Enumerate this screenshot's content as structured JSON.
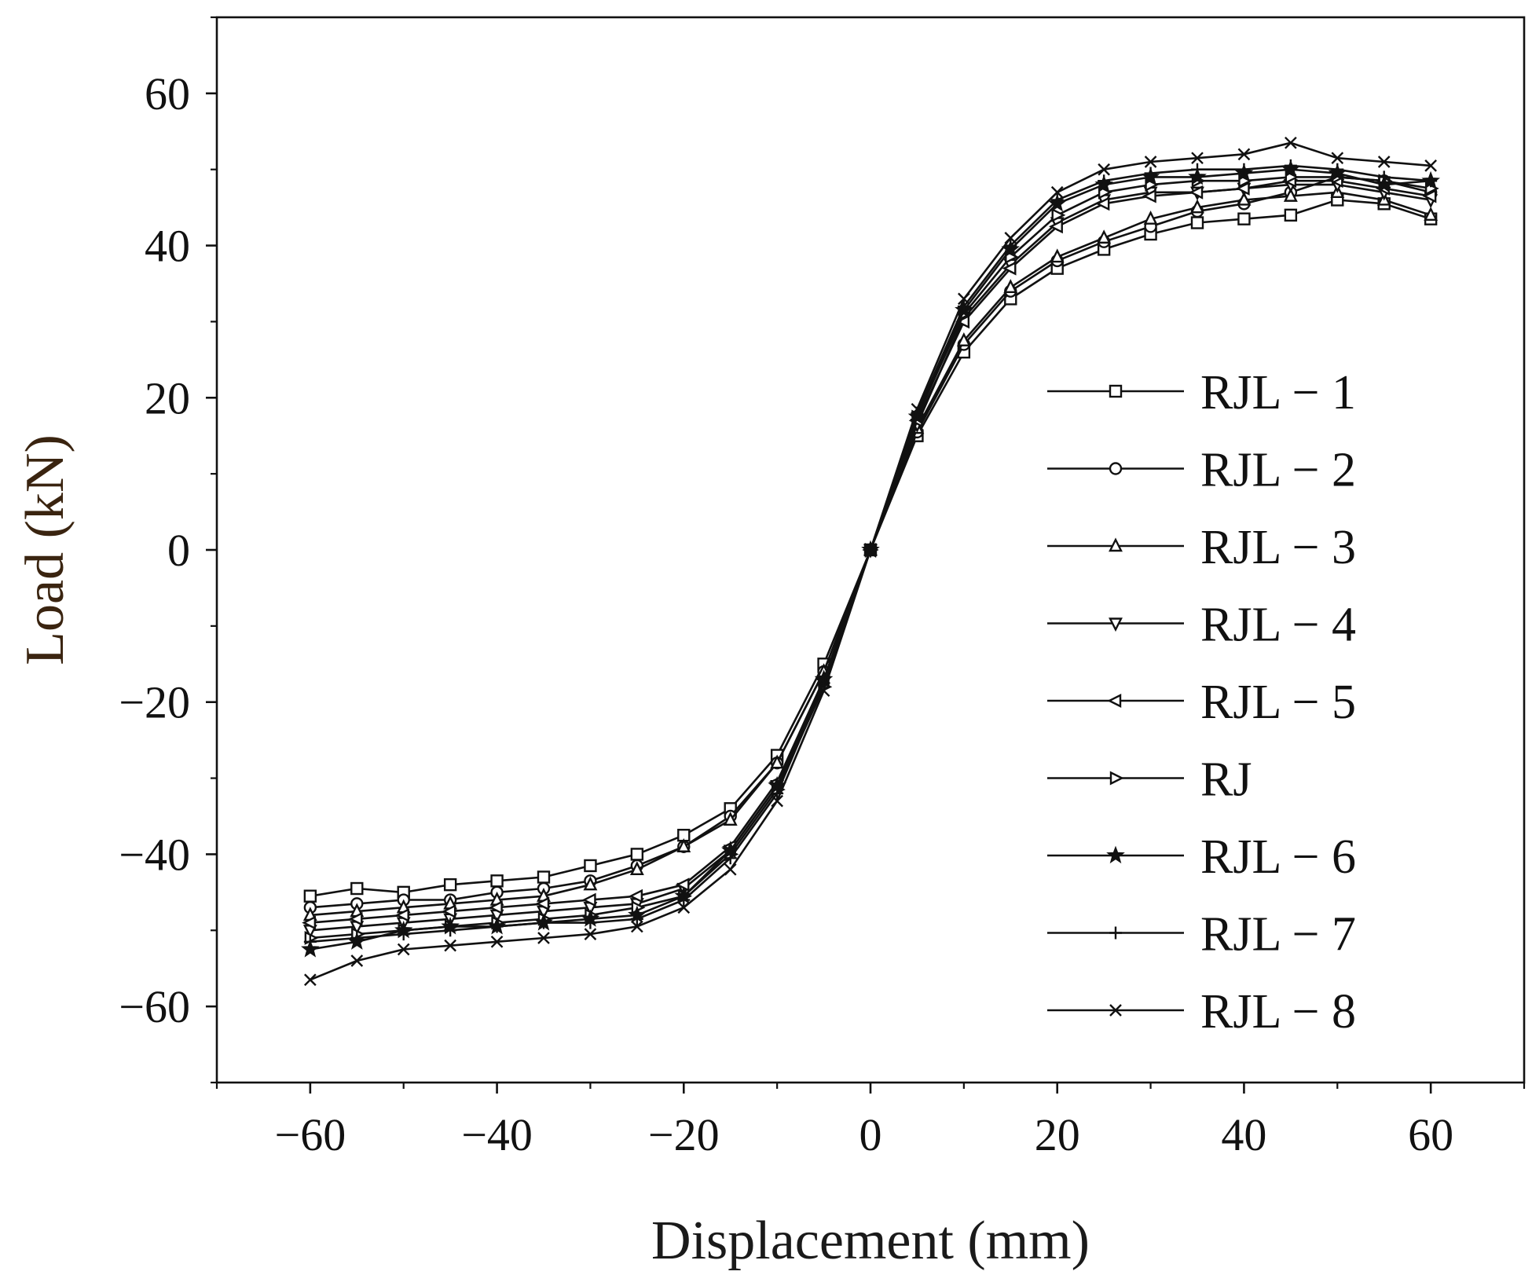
{
  "chart_data": {
    "type": "line",
    "title": "",
    "xlabel": "Displacement (mm)",
    "ylabel": "Load (kN)",
    "xlim": [
      -70,
      70
    ],
    "ylim": [
      -70,
      70
    ],
    "xticks": [
      -60,
      -40,
      -20,
      0,
      20,
      40,
      60
    ],
    "yticks": [
      -60,
      -40,
      -20,
      0,
      20,
      40,
      60
    ],
    "x_tick_labels": [
      "−60",
      "−40",
      "−20",
      "0",
      "20",
      "40",
      "60"
    ],
    "y_tick_labels": [
      "−60",
      "−40",
      "−20",
      "0",
      "20",
      "40",
      "60"
    ],
    "legend_position": "right",
    "x": [
      -60,
      -55,
      -50,
      -45,
      -40,
      -35,
      -30,
      -25,
      -20,
      -15,
      -10,
      -5,
      0,
      5,
      10,
      15,
      20,
      25,
      30,
      35,
      40,
      45,
      50,
      55,
      60
    ],
    "series": [
      {
        "name": "RJL − 1",
        "marker": "square",
        "values": [
          -45.5,
          -44.5,
          -45,
          -44,
          -43.5,
          -43,
          -41.5,
          -40,
          -37.5,
          -34,
          -27,
          -15,
          0,
          15,
          26,
          33,
          37,
          39.5,
          41.5,
          43,
          43.5,
          44,
          46,
          45.5,
          43.5
        ]
      },
      {
        "name": "RJL − 2",
        "marker": "circle",
        "values": [
          -47,
          -46.5,
          -46,
          -46,
          -45,
          -44.5,
          -43.5,
          -41.5,
          -39,
          -35,
          -28,
          -16,
          0,
          15.5,
          27,
          34,
          38,
          40.5,
          42.5,
          44.5,
          45.5,
          47,
          49,
          48.5,
          47
        ]
      },
      {
        "name": "RJL − 3",
        "marker": "triangle-up",
        "values": [
          -48,
          -47.5,
          -47,
          -46.5,
          -46,
          -45.5,
          -44,
          -42,
          -39,
          -35.5,
          -28,
          -16,
          0,
          16,
          27.5,
          34.5,
          38.5,
          41,
          43.5,
          45,
          46,
          46.5,
          47,
          46,
          44
        ]
      },
      {
        "name": "RJL − 4",
        "marker": "triangle-down",
        "values": [
          -50,
          -49.5,
          -49,
          -48.5,
          -48,
          -47.5,
          -47,
          -46.5,
          -44.5,
          -39.5,
          -31,
          -17.5,
          0,
          16.5,
          30.5,
          37.5,
          43,
          46,
          47,
          47,
          47.5,
          48,
          48,
          47,
          46
        ]
      },
      {
        "name": "RJL − 5",
        "marker": "triangle-left",
        "values": [
          -49,
          -48.5,
          -48,
          -47.5,
          -47,
          -46.5,
          -46,
          -45.5,
          -44,
          -39,
          -30.5,
          -17,
          0,
          17,
          30,
          37,
          42.5,
          45.5,
          46.5,
          47,
          47.5,
          48.5,
          48.5,
          47.5,
          46.5
        ]
      },
      {
        "name": "RJ",
        "marker": "triangle-right",
        "values": [
          -51,
          -50.5,
          -50,
          -49.5,
          -49,
          -48.5,
          -48,
          -47,
          -45.5,
          -40,
          -31.5,
          -18,
          0,
          17.5,
          31,
          38.5,
          44,
          47,
          48,
          48.5,
          48.5,
          49,
          49,
          48.5,
          47.5
        ]
      },
      {
        "name": "RJL − 6",
        "marker": "star",
        "values": [
          -52.5,
          -51.5,
          -50,
          -49.5,
          -49.5,
          -49,
          -48.5,
          -48,
          -45.5,
          -39.5,
          -31,
          -17,
          0,
          17.5,
          31.5,
          39.5,
          45.5,
          48,
          49,
          49,
          49.5,
          50,
          49.5,
          48,
          48.5
        ]
      },
      {
        "name": "RJL − 7",
        "marker": "plus",
        "values": [
          -51.5,
          -51,
          -50.5,
          -50,
          -49.5,
          -49,
          -49,
          -48.5,
          -46,
          -40.5,
          -32,
          -17.5,
          0,
          18,
          32,
          40,
          46,
          48.5,
          49.5,
          50,
          50,
          50.5,
          50,
          49,
          48.5
        ]
      },
      {
        "name": "RJL − 8",
        "marker": "x",
        "values": [
          -56.5,
          -54,
          -52.5,
          -52,
          -51.5,
          -51,
          -50.5,
          -49.5,
          -47,
          -42,
          -33,
          -18.5,
          0,
          18.5,
          33,
          41,
          47,
          50,
          51,
          51.5,
          52,
          53.5,
          51.5,
          51,
          50.5
        ]
      }
    ]
  },
  "colors": {
    "line": "#111111",
    "background": "#ffffff",
    "ylabel_color": "#3a2410"
  }
}
